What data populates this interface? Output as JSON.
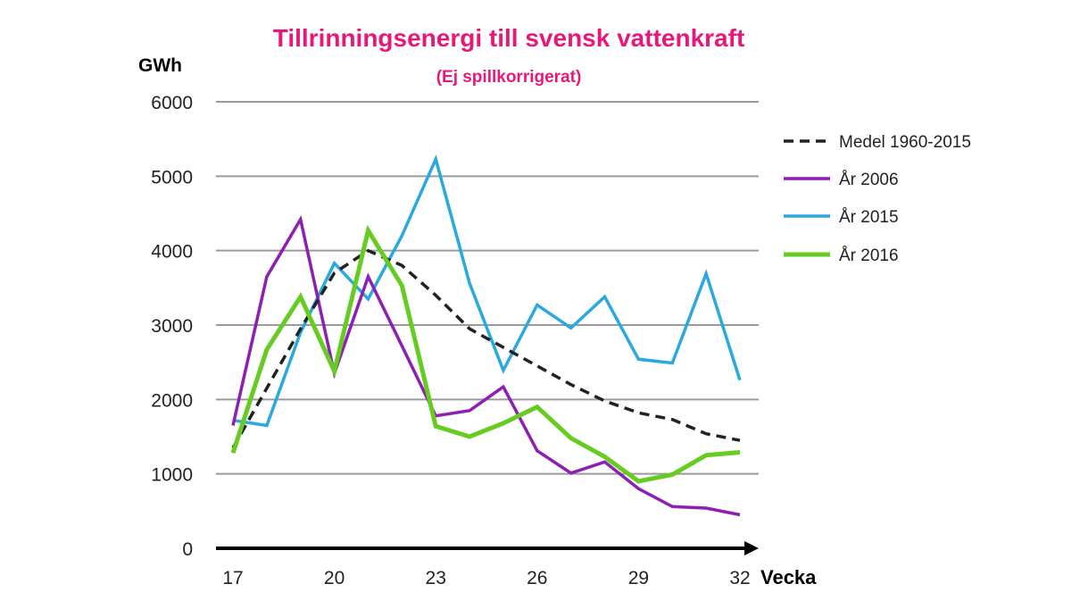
{
  "chart_data": {
    "type": "line",
    "title": "Tillrinningsenergi till svensk vattenkraft",
    "subtitle": "(Ej spillkorrigerat)",
    "ylabel": "GWh",
    "xlabel": "Vecka",
    "x": [
      17,
      18,
      19,
      20,
      21,
      22,
      23,
      24,
      25,
      26,
      27,
      28,
      29,
      30,
      31,
      32
    ],
    "xticks": [
      17,
      20,
      23,
      26,
      29,
      32
    ],
    "yticks": [
      0,
      1000,
      2000,
      3000,
      4000,
      5000,
      6000
    ],
    "ylim": [
      0,
      6000
    ],
    "grid": true,
    "legend_position": "right",
    "series": [
      {
        "name": "Medel 1960-2015",
        "color": "#222222",
        "dashed": true,
        "values": [
          1350,
          2150,
          2950,
          3700,
          4000,
          3800,
          3400,
          2950,
          2700,
          2450,
          2200,
          1980,
          1820,
          1730,
          1540,
          1450
        ]
      },
      {
        "name": "År 2006",
        "color": "#8e1fb2",
        "dashed": false,
        "values": [
          1650,
          3650,
          4420,
          2350,
          3650,
          2720,
          1780,
          1850,
          2170,
          1310,
          1010,
          1160,
          800,
          560,
          540,
          450
        ]
      },
      {
        "name": "År 2015",
        "color": "#2aa9e0",
        "dashed": false,
        "values": [
          1720,
          1650,
          2900,
          3830,
          3350,
          4200,
          5230,
          3560,
          2390,
          3270,
          2960,
          3380,
          2540,
          2490,
          3690,
          2260
        ]
      },
      {
        "name": "År 2016",
        "color": "#66cc22",
        "dashed": false,
        "values": [
          1280,
          2670,
          3380,
          2380,
          4270,
          3530,
          1640,
          1500,
          1680,
          1900,
          1480,
          1230,
          900,
          990,
          1250,
          1290
        ]
      }
    ]
  }
}
